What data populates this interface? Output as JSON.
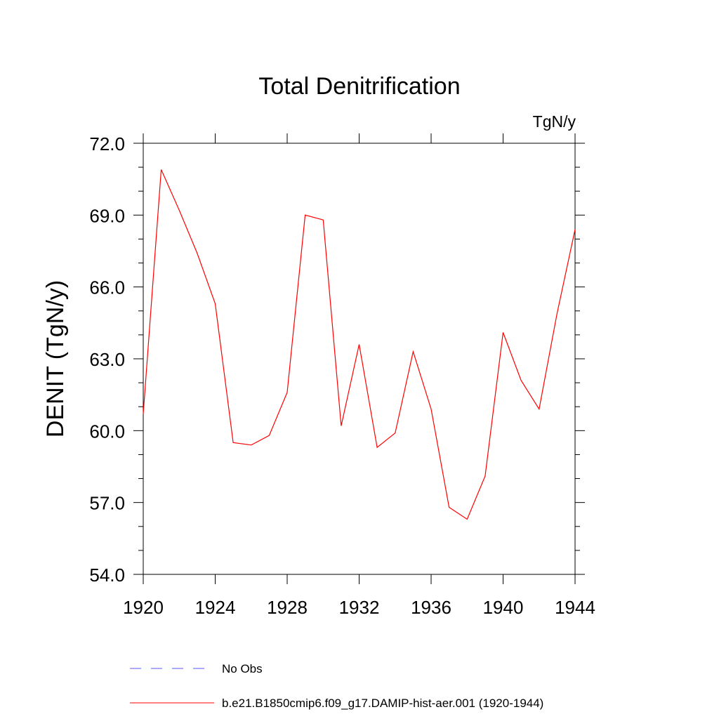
{
  "chart_data": {
    "type": "line",
    "title": "Total Denitrification",
    "units_label": "TgN/y",
    "ylabel": "DENIT  (TgN/y)",
    "xlabel": "",
    "xlim": [
      1920,
      1944
    ],
    "ylim": [
      54.0,
      72.0
    ],
    "x_ticks": [
      "1920",
      "1924",
      "1928",
      "1932",
      "1936",
      "1940",
      "1944"
    ],
    "y_ticks": [
      "54.0",
      "57.0",
      "60.0",
      "63.0",
      "66.0",
      "69.0",
      "72.0"
    ],
    "grid": false,
    "series": [
      {
        "name": "b.e21.B1850cmip6.f09_g17.DAMIP-hist-aer.001 (1920-1944)",
        "color": "#ff0000",
        "style": "solid",
        "x": [
          1920,
          1921,
          1922,
          1923,
          1924,
          1925,
          1926,
          1927,
          1928,
          1929,
          1930,
          1931,
          1932,
          1933,
          1934,
          1935,
          1936,
          1937,
          1938,
          1939,
          1940,
          1941,
          1942,
          1943,
          1944
        ],
        "values": [
          60.7,
          70.9,
          69.2,
          67.4,
          65.3,
          59.5,
          59.4,
          59.8,
          61.6,
          69.0,
          68.8,
          60.2,
          63.6,
          59.3,
          59.9,
          63.3,
          60.9,
          56.8,
          56.3,
          58.1,
          64.1,
          62.1,
          60.9,
          64.9,
          68.4
        ]
      }
    ],
    "legend": {
      "placement": "bottom",
      "entries": [
        {
          "label": "No Obs",
          "color": "#5555ff",
          "style": "dashed"
        },
        {
          "label": "b.e21.B1850cmip6.f09_g17.DAMIP-hist-aer.001 (1920-1944)",
          "color": "#ff0000",
          "style": "solid"
        }
      ]
    }
  }
}
